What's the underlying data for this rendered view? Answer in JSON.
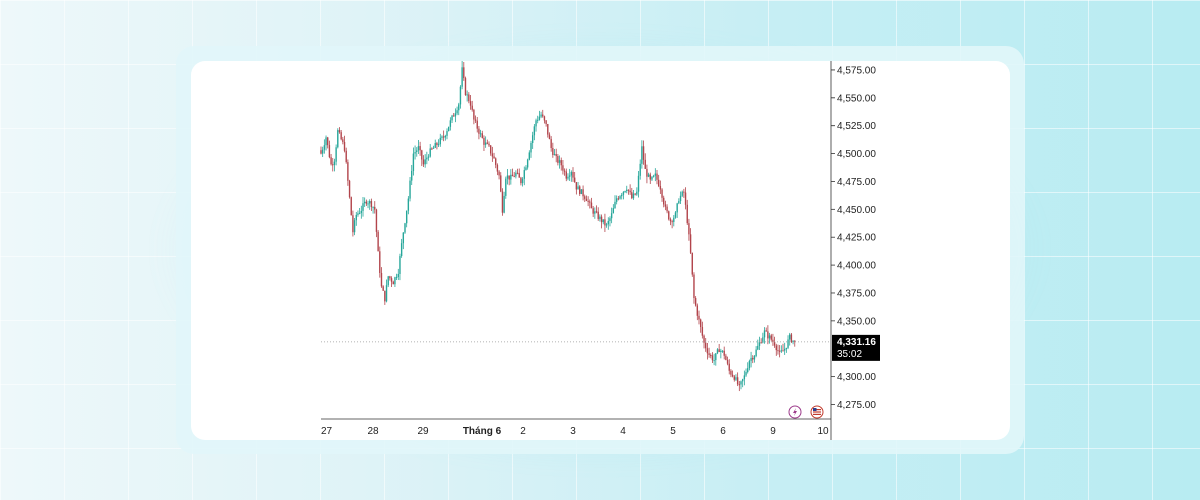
{
  "chart_data": {
    "type": "candlestick",
    "y_ticks": [
      "4,575.00",
      "4,550.00",
      "4,525.00",
      "4,500.00",
      "4,475.00",
      "4,450.00",
      "4,425.00",
      "4,400.00",
      "4,375.00",
      "4,350.00",
      "4,300.00",
      "4,275.00"
    ],
    "x_ticks": [
      "27",
      "28",
      "29",
      "Tháng 6",
      "2",
      "3",
      "4",
      "5",
      "6",
      "9",
      "10"
    ],
    "ylim": [
      4262,
      4583
    ],
    "current_price": 4331.16,
    "current_price_label": "4,331.16",
    "countdown_label": "35:02",
    "colors": {
      "up": "#26a69a",
      "down": "#b2444b",
      "price_tag_bg": "#000000"
    },
    "candle_close_path": [
      [
        0,
        4500
      ],
      [
        3,
        4515
      ],
      [
        6,
        4490
      ],
      [
        8,
        4495
      ],
      [
        10,
        4520
      ],
      [
        14,
        4505
      ],
      [
        17,
        4460
      ],
      [
        19,
        4430
      ],
      [
        21,
        4445
      ],
      [
        24,
        4450
      ],
      [
        27,
        4458
      ],
      [
        30,
        4455
      ],
      [
        32,
        4450
      ],
      [
        34,
        4410
      ],
      [
        36,
        4380
      ],
      [
        38,
        4370
      ],
      [
        40,
        4390
      ],
      [
        43,
        4385
      ],
      [
        46,
        4395
      ],
      [
        49,
        4430
      ],
      [
        52,
        4460
      ],
      [
        55,
        4500
      ],
      [
        58,
        4505
      ],
      [
        61,
        4490
      ],
      [
        64,
        4500
      ],
      [
        67,
        4505
      ],
      [
        70,
        4510
      ],
      [
        73,
        4515
      ],
      [
        76,
        4525
      ],
      [
        79,
        4535
      ],
      [
        82,
        4545
      ],
      [
        84,
        4575
      ],
      [
        86,
        4555
      ],
      [
        89,
        4545
      ],
      [
        91,
        4530
      ],
      [
        94,
        4520
      ],
      [
        97,
        4510
      ],
      [
        100,
        4505
      ],
      [
        103,
        4495
      ],
      [
        106,
        4480
      ],
      [
        108,
        4450
      ],
      [
        110,
        4480
      ],
      [
        113,
        4478
      ],
      [
        116,
        4482
      ],
      [
        119,
        4475
      ],
      [
        122,
        4490
      ],
      [
        125,
        4510
      ],
      [
        128,
        4530
      ],
      [
        131,
        4535
      ],
      [
        134,
        4525
      ],
      [
        137,
        4505
      ],
      [
        140,
        4495
      ],
      [
        143,
        4490
      ],
      [
        146,
        4480
      ],
      [
        149,
        4485
      ],
      [
        152,
        4470
      ],
      [
        155,
        4465
      ],
      [
        158,
        4460
      ],
      [
        161,
        4450
      ],
      [
        164,
        4445
      ],
      [
        167,
        4440
      ],
      [
        170,
        4435
      ],
      [
        173,
        4445
      ],
      [
        176,
        4460
      ],
      [
        179,
        4465
      ],
      [
        182,
        4470
      ],
      [
        185,
        4460
      ],
      [
        188,
        4465
      ],
      [
        191,
        4505
      ],
      [
        193,
        4485
      ],
      [
        196,
        4475
      ],
      [
        199,
        4480
      ],
      [
        202,
        4470
      ],
      [
        205,
        4450
      ],
      [
        208,
        4440
      ],
      [
        211,
        4445
      ],
      [
        213,
        4460
      ],
      [
        216,
        4465
      ],
      [
        218,
        4440
      ],
      [
        220,
        4410
      ],
      [
        222,
        4370
      ],
      [
        225,
        4350
      ],
      [
        228,
        4330
      ],
      [
        231,
        4320
      ],
      [
        234,
        4315
      ],
      [
        237,
        4325
      ],
      [
        240,
        4320
      ],
      [
        243,
        4305
      ],
      [
        246,
        4300
      ],
      [
        249,
        4290
      ],
      [
        252,
        4300
      ],
      [
        255,
        4315
      ],
      [
        258,
        4320
      ],
      [
        261,
        4330
      ],
      [
        264,
        4340
      ],
      [
        267,
        4335
      ],
      [
        270,
        4330
      ],
      [
        273,
        4320
      ],
      [
        276,
        4325
      ],
      [
        279,
        4335
      ],
      [
        282,
        4331
      ]
    ]
  },
  "toolbar_icons": [
    "lightning-icon",
    "us-flag-icon"
  ]
}
